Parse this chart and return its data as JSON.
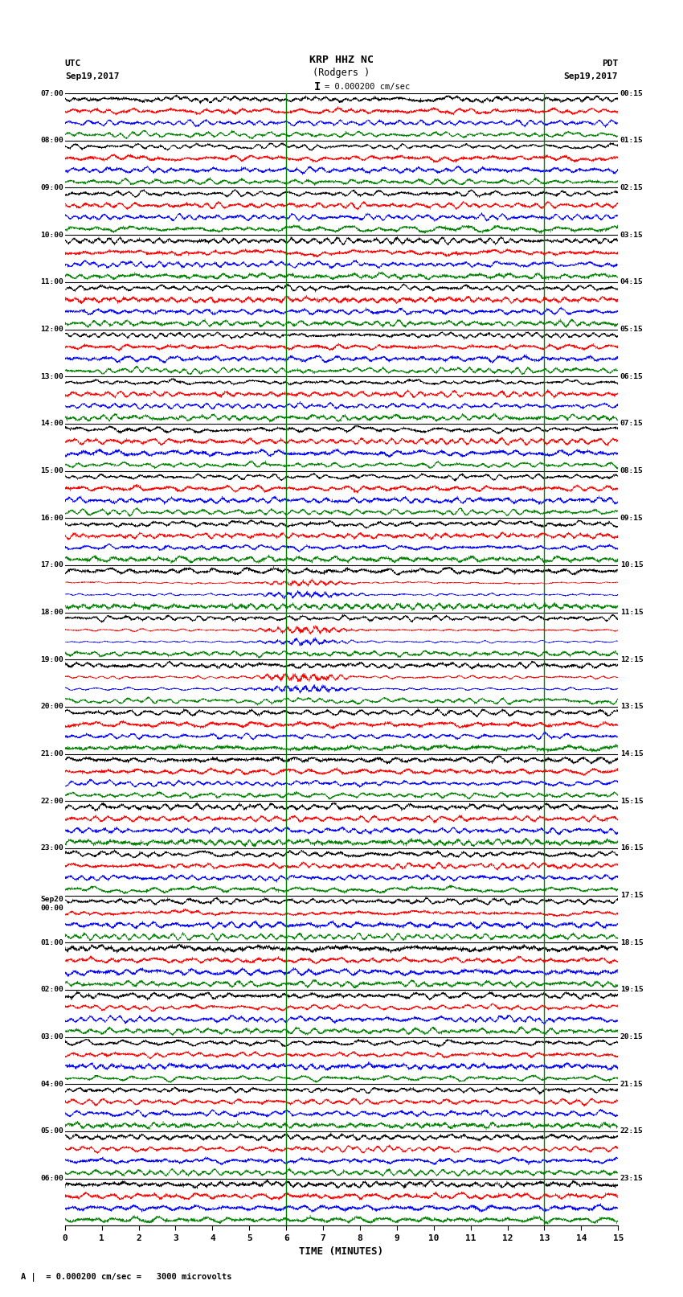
{
  "title_line1": "KRP HHZ NC",
  "title_line2": "(Rodgers )",
  "scale_label": "= 0.000200 cm/sec",
  "bottom_label": "= 0.000200 cm/sec =   3000 microvolts",
  "xlabel": "TIME (MINUTES)",
  "utc_label": "UTC",
  "utc_date": "Sep19,2017",
  "pdt_label": "PDT",
  "pdt_date": "Sep19,2017",
  "left_times": [
    "07:00",
    "08:00",
    "09:00",
    "10:00",
    "11:00",
    "12:00",
    "13:00",
    "14:00",
    "15:00",
    "16:00",
    "17:00",
    "18:00",
    "19:00",
    "20:00",
    "21:00",
    "22:00",
    "23:00",
    "Sep20\n00:00",
    "01:00",
    "02:00",
    "03:00",
    "04:00",
    "05:00",
    "06:00"
  ],
  "right_times": [
    "00:15",
    "01:15",
    "02:15",
    "03:15",
    "04:15",
    "05:15",
    "06:15",
    "07:15",
    "08:15",
    "09:15",
    "10:15",
    "11:15",
    "12:15",
    "13:15",
    "14:15",
    "15:15",
    "16:15",
    "17:15",
    "18:15",
    "19:15",
    "20:15",
    "21:15",
    "22:15",
    "23:15"
  ],
  "n_rows": 24,
  "sub_colors": [
    "black",
    "red",
    "blue",
    "green"
  ],
  "bg_color": "white",
  "fig_width": 8.5,
  "fig_height": 16.13,
  "dpi": 100,
  "seed": 42,
  "xmin": 0,
  "xmax": 15,
  "xticks": [
    0,
    1,
    2,
    3,
    4,
    5,
    6,
    7,
    8,
    9,
    10,
    11,
    12,
    13,
    14,
    15
  ],
  "samples_per_row": 4500,
  "amplitude": 0.42,
  "earthquake_rows": [
    10,
    11,
    12
  ],
  "earthquake_minute": 6.5,
  "earthquake_amplitude": 1.8,
  "eq_sub_colors": [
    1,
    2
  ]
}
